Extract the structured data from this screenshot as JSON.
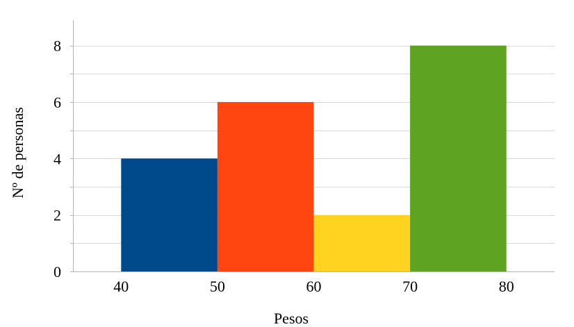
{
  "chart_data": {
    "type": "bar",
    "title": "",
    "xlabel": "Pesos",
    "ylabel": "Nº de personas",
    "x_ticks": [
      "40",
      "50",
      "60",
      "70",
      "80"
    ],
    "y_ticks": [
      "0",
      "2",
      "4",
      "6",
      "8"
    ],
    "xlim": [
      35,
      85
    ],
    "ylim": [
      0,
      8.9
    ],
    "bins": [
      {
        "from": 40,
        "to": 50,
        "value": 4,
        "color": "#004a8c"
      },
      {
        "from": 50,
        "to": 60,
        "value": 6,
        "color": "#ff4610"
      },
      {
        "from": 60,
        "to": 70,
        "value": 2,
        "color": "#ffd320"
      },
      {
        "from": 70,
        "to": 80,
        "value": 8,
        "color": "#5ea321"
      }
    ],
    "grid": true,
    "legend": "none"
  }
}
